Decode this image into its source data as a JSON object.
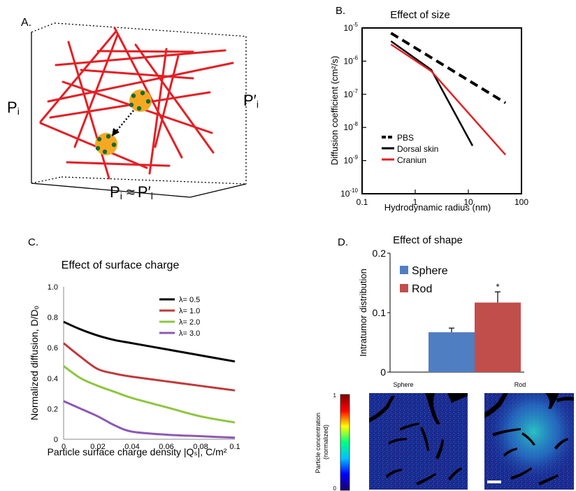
{
  "panels": {
    "a": {
      "label": "A.",
      "left_text": "P",
      "left_sub": "i",
      "right_text": "P′",
      "right_sub": "i",
      "bottom_text": "P",
      "bottom_sub": "i",
      "bottom_rel": "≈",
      "bottom_text2": "P′",
      "bottom_sub2": "i",
      "fiber_color": "#e32025",
      "particle_color": "#f7a823",
      "ligand_color": "#0b6b3a"
    },
    "b": {
      "label": "B."
    },
    "c": {
      "label": "C."
    },
    "d": {
      "label": "D.",
      "image_titles": [
        "Sphere",
        "Rod"
      ],
      "colorbar_label": "Particle concentration (normalized)",
      "colorbar_ticks": [
        "1",
        "0"
      ],
      "colorbar_colors": [
        "#7f0000",
        "#ff0000",
        "#ffff00",
        "#00ff80",
        "#00bfff",
        "#0000ff",
        "#1a0066"
      ]
    }
  },
  "chart_data": [
    {
      "id": "effect_of_size",
      "type": "line",
      "title": "Effect of size",
      "xlabel": "Hydrodynamic radius (nm)",
      "ylabel": "Diffusion coefficient (cm²/s)",
      "xscale": "log",
      "yscale": "log",
      "xlim": [
        0.1,
        100
      ],
      "ylim": [
        1e-10,
        1e-05
      ],
      "xticks": [
        "0.1",
        "1",
        "10",
        "100"
      ],
      "yticks": [
        "10-10",
        "10-9",
        "10-8",
        "10-7",
        "10-6",
        "10-5"
      ],
      "legend_position": "bottom-left",
      "series": [
        {
          "name": "PBS",
          "style": "dashed",
          "color": "#000000",
          "x": [
            0.35,
            50
          ],
          "y": [
            7e-06,
            5.5e-08
          ]
        },
        {
          "name": "Dorsal skin",
          "style": "solid",
          "color": "#000000",
          "x": [
            0.35,
            2,
            12
          ],
          "y": [
            4e-06,
            5.5e-07,
            2.8e-09
          ]
        },
        {
          "name": "Craniun",
          "style": "solid",
          "color": "#e32025",
          "x": [
            0.35,
            2,
            50
          ],
          "y": [
            3.2e-06,
            5e-07,
            1.5e-09
          ]
        }
      ]
    },
    {
      "id": "effect_of_surface_charge",
      "type": "line",
      "title": "Effect of surface charge",
      "xlabel": "Particle surface charge density |Qₛ|, C/m²",
      "ylabel": "Normalized diffusion, D/Dₒ",
      "xlim": [
        0,
        0.1
      ],
      "ylim": [
        0,
        1.0
      ],
      "xticks": [
        "0",
        "0.02",
        "0.04",
        "0.06",
        "0.08",
        "0.1"
      ],
      "yticks": [
        "0",
        "0.2",
        "0.4",
        "0.6",
        "0.8",
        "1.0"
      ],
      "legend_position": "top-right",
      "x": [
        0,
        0.01,
        0.02,
        0.03,
        0.04,
        0.06,
        0.08,
        0.1
      ],
      "series": [
        {
          "name": "λ= 0.5",
          "color": "#000000",
          "values": [
            0.77,
            0.72,
            0.68,
            0.65,
            0.63,
            0.59,
            0.55,
            0.51
          ]
        },
        {
          "name": "λ= 1.0",
          "color": "#c0393b",
          "values": [
            0.63,
            0.54,
            0.46,
            0.43,
            0.41,
            0.38,
            0.35,
            0.32
          ]
        },
        {
          "name": "λ= 2.0",
          "color": "#8dc63f",
          "values": [
            0.48,
            0.4,
            0.35,
            0.31,
            0.27,
            0.21,
            0.15,
            0.11
          ]
        },
        {
          "name": "λ= 3.0",
          "color": "#8e58b5",
          "values": [
            0.25,
            0.2,
            0.15,
            0.09,
            0.05,
            0.03,
            0.02,
            0.01
          ]
        }
      ]
    },
    {
      "id": "effect_of_shape",
      "type": "bar",
      "title": "Effect of shape",
      "ylabel": "Intratumor distribution",
      "ylim": [
        0,
        0.2
      ],
      "yticks": [
        "0",
        "0.1",
        "0.2"
      ],
      "legend_position": "top-left",
      "categories": [
        "Sphere",
        "Rod"
      ],
      "values": [
        0.067,
        0.117
      ],
      "errors": [
        0.007,
        0.018
      ],
      "colors": [
        "#4f7ec3",
        "#c24e4b"
      ],
      "annotations": [
        "",
        "*"
      ]
    }
  ]
}
